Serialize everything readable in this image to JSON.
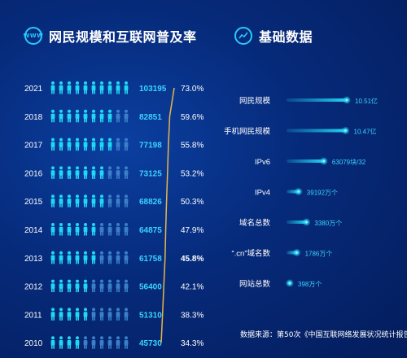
{
  "left_panel": {
    "icon_text": "WWW",
    "title": "网民规模和互联网普及率"
  },
  "right_panel": {
    "title": "基础数据",
    "source_text": "数据来源：第50次《中国互联网络发展状况统计报告》"
  },
  "colors": {
    "icon_full": "#20d8f5",
    "icon_dim": "#3a7fc8",
    "line": "#e8b64a",
    "bar": "#22d4f5",
    "value_text": "#3ad3ff",
    "label_text": "#ffffff"
  },
  "chart_data": [
    {
      "type": "pictogram_with_line",
      "years": [
        "2021",
        "2018",
        "2017",
        "2016",
        "2015",
        "2014",
        "2013",
        "2012",
        "2011",
        "2010"
      ],
      "users": [
        103195,
        82851,
        77198,
        73125,
        68826,
        64875,
        61758,
        56400,
        51310,
        45730
      ],
      "penetration": [
        "73.0%",
        "59.6%",
        "55.8%",
        "53.2%",
        "50.3%",
        "47.9%",
        "45.8%",
        "42.1%",
        "38.3%",
        "34.3%"
      ],
      "penetration_values": [
        73.0,
        59.6,
        55.8,
        53.2,
        50.3,
        47.9,
        45.8,
        42.1,
        38.3,
        34.3
      ],
      "icons_per_row": 10,
      "full_icons": [
        10,
        8,
        8,
        7,
        7,
        6,
        6,
        5,
        5,
        4
      ]
    },
    {
      "type": "bar",
      "categories": [
        "网民规模",
        "手机网民规模",
        "IPv6",
        "IPv4",
        "域名总数",
        "“.cn”域名数",
        "网站总数"
      ],
      "value_labels": [
        "10.51亿",
        "10.47亿",
        "63079块/32",
        "39192万个",
        "3380万个",
        "1786万个",
        "398万个"
      ],
      "relative_values": [
        1.0,
        0.98,
        0.62,
        0.2,
        0.33,
        0.17,
        0.05
      ]
    }
  ]
}
